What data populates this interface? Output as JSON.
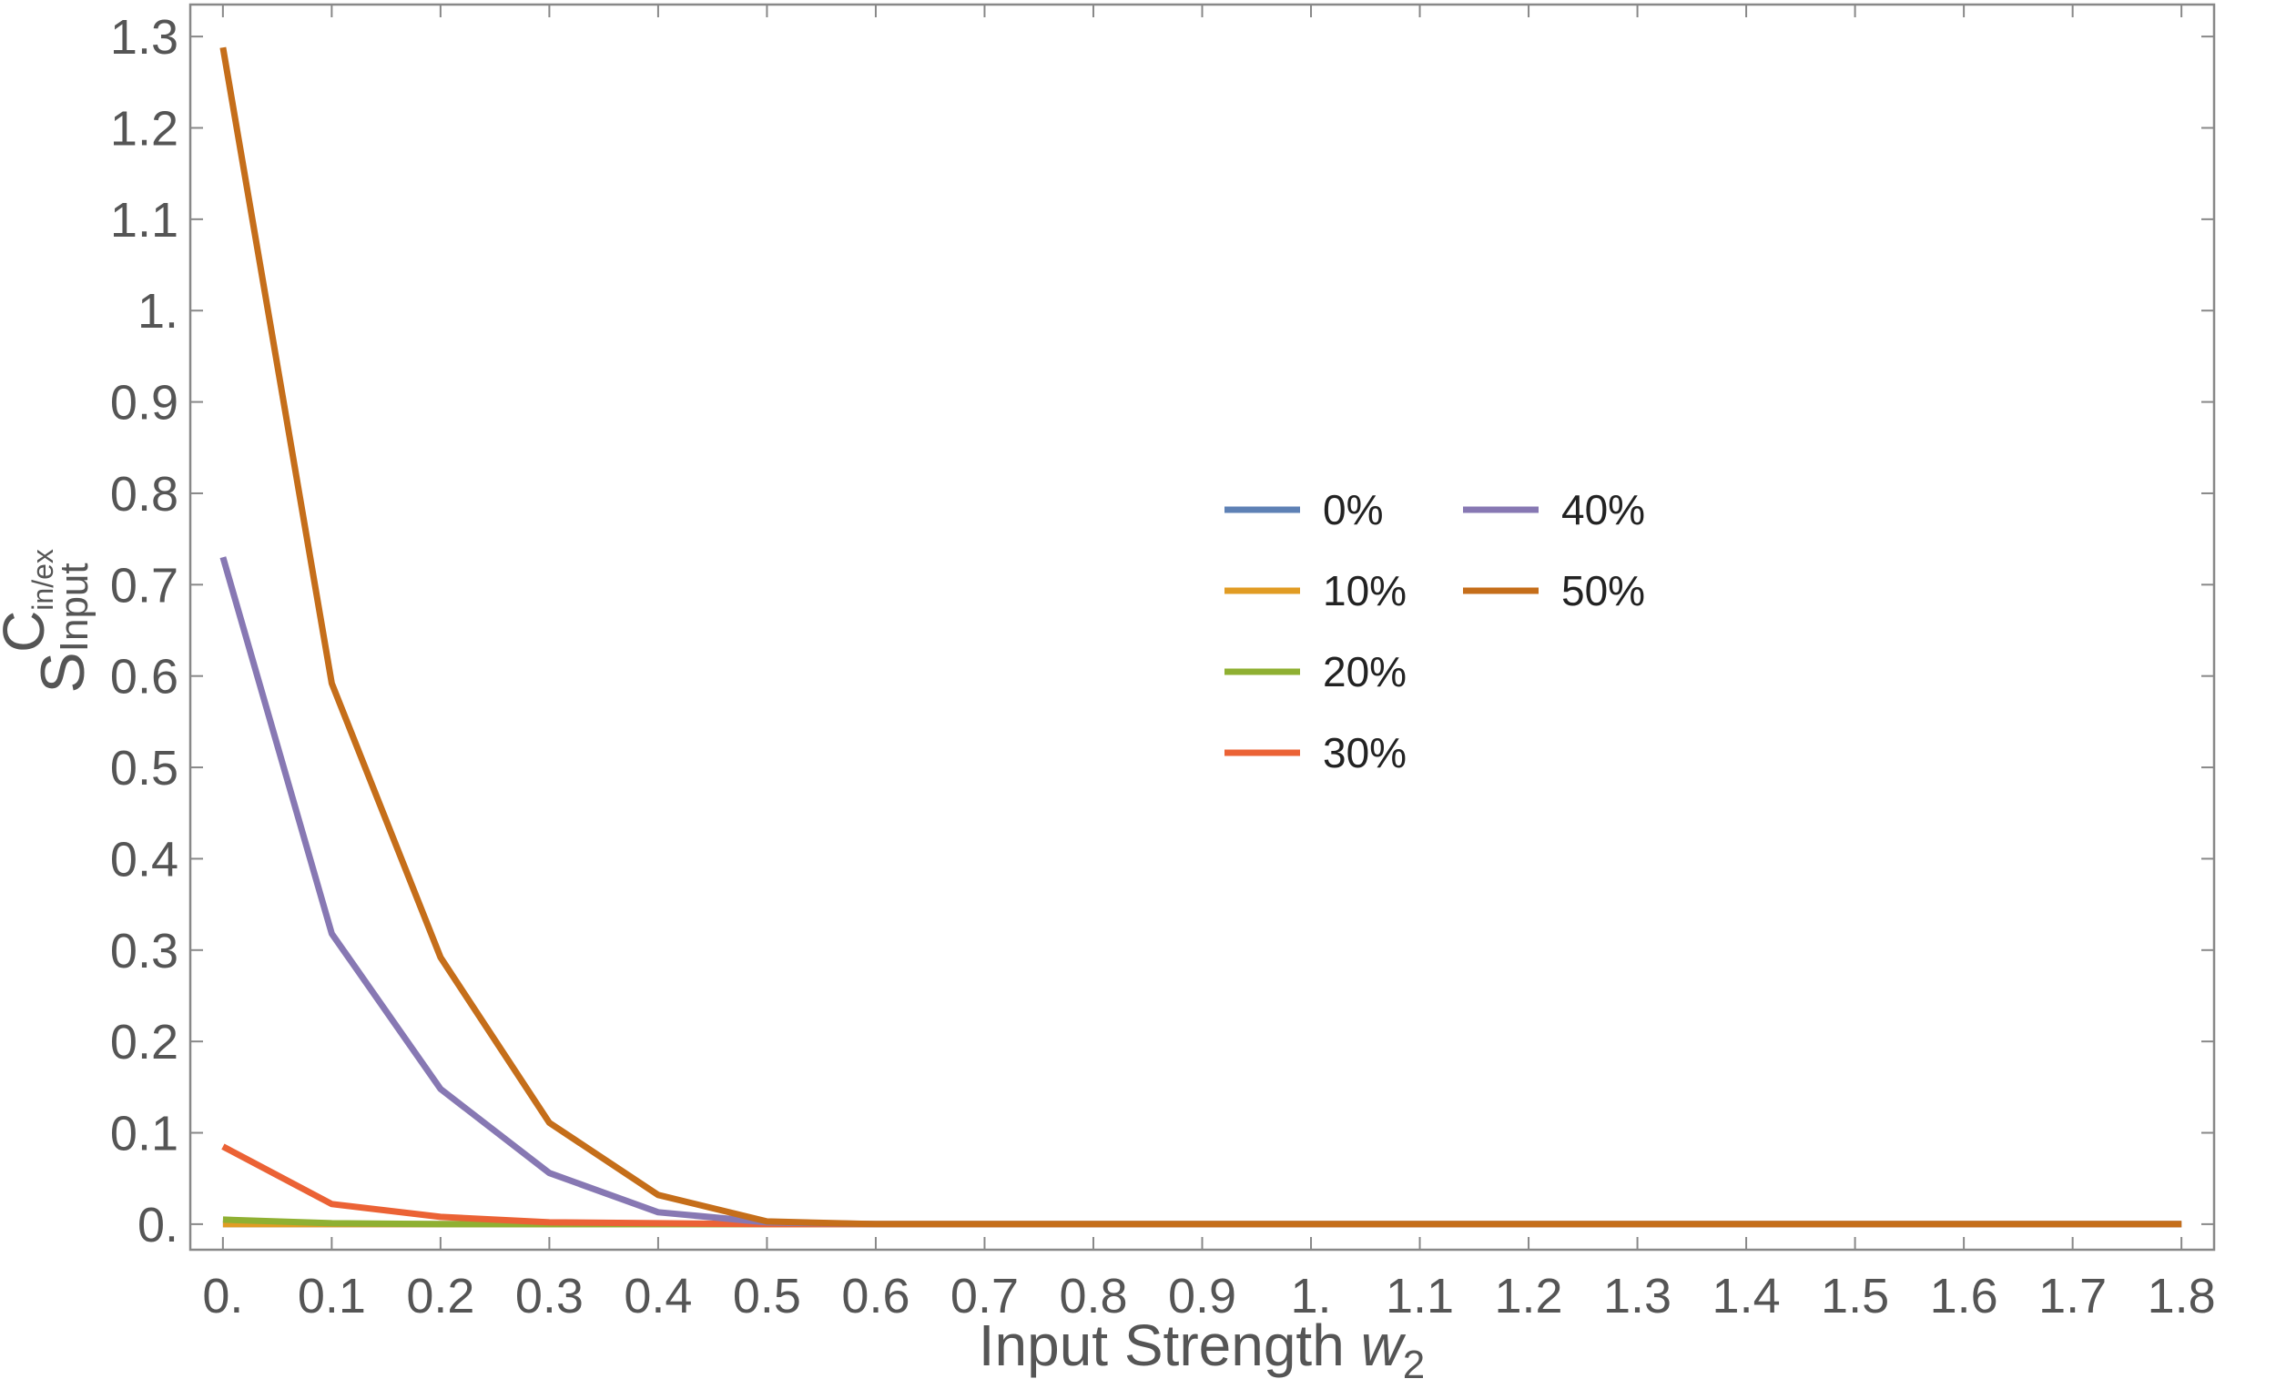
{
  "chart_data": {
    "type": "line",
    "xlabel": "Input Strength",
    "xlabel_var": "w",
    "xlabel_sub": "2",
    "ylabel_base": "S",
    "ylabel_sub": "Input",
    "ylabel_sup": "C",
    "ylabel_sup_sub": "in/ex",
    "xlim": [
      -0.03,
      1.83
    ],
    "ylim": [
      -0.028,
      1.335
    ],
    "x_ticks": [
      0,
      0.1,
      0.2,
      0.3,
      0.4,
      0.5,
      0.6,
      0.7,
      0.8,
      0.9,
      1.0,
      1.1,
      1.2,
      1.3,
      1.4,
      1.5,
      1.6,
      1.7,
      1.8
    ],
    "x_tick_labels": [
      "0.",
      "0.1",
      "0.2",
      "0.3",
      "0.4",
      "0.5",
      "0.6",
      "0.7",
      "0.8",
      "0.9",
      "1.",
      "1.1",
      "1.2",
      "1.3",
      "1.4",
      "1.5",
      "1.6",
      "1.7",
      "1.8"
    ],
    "y_ticks": [
      0,
      0.1,
      0.2,
      0.3,
      0.4,
      0.5,
      0.6,
      0.7,
      0.8,
      0.9,
      1.0,
      1.1,
      1.2,
      1.3
    ],
    "y_tick_labels": [
      "0.",
      "0.1",
      "0.2",
      "0.3",
      "0.4",
      "0.5",
      "0.6",
      "0.7",
      "0.8",
      "0.9",
      "1.",
      "1.1",
      "1.2",
      "1.3"
    ],
    "grid": false,
    "legend_position": "center-right",
    "x": [
      0,
      0.1,
      0.2,
      0.3,
      0.4,
      0.5,
      0.6,
      0.7,
      0.8,
      0.9,
      1.0,
      1.1,
      1.2,
      1.3,
      1.4,
      1.5,
      1.6,
      1.7,
      1.8
    ],
    "series": [
      {
        "name": "0%",
        "color": "#5E81B5",
        "values": [
          0,
          0,
          0,
          0,
          0,
          0,
          0,
          0,
          0,
          0,
          0,
          0,
          0,
          0,
          0,
          0,
          0,
          0,
          0
        ]
      },
      {
        "name": "10%",
        "color": "#E19C24",
        "values": [
          0,
          0,
          0,
          0,
          0,
          0,
          0,
          0,
          0,
          0,
          0,
          0,
          0,
          0,
          0,
          0,
          0,
          0,
          0
        ]
      },
      {
        "name": "20%",
        "color": "#8FB032",
        "values": [
          0.005,
          0.001,
          0,
          0,
          0,
          0,
          0,
          0,
          0,
          0,
          0,
          0,
          0,
          0,
          0,
          0,
          0,
          0,
          0
        ]
      },
      {
        "name": "30%",
        "color": "#EB6235",
        "values": [
          0.085,
          0.022,
          0.008,
          0.002,
          0.001,
          0,
          0,
          0,
          0,
          0,
          0,
          0,
          0,
          0,
          0,
          0,
          0,
          0,
          0
        ]
      },
      {
        "name": "40%",
        "color": "#8778B3",
        "values": [
          0.73,
          0.318,
          0.148,
          0.056,
          0.013,
          0.002,
          0,
          0,
          0,
          0,
          0,
          0,
          0,
          0,
          0,
          0,
          0,
          0,
          0
        ]
      },
      {
        "name": "50%",
        "color": "#C56E1A",
        "values": [
          1.288,
          0.592,
          0.292,
          0.111,
          0.032,
          0.003,
          0,
          0,
          0,
          0,
          0,
          0,
          0,
          0,
          0,
          0,
          0,
          0,
          0
        ]
      }
    ]
  }
}
